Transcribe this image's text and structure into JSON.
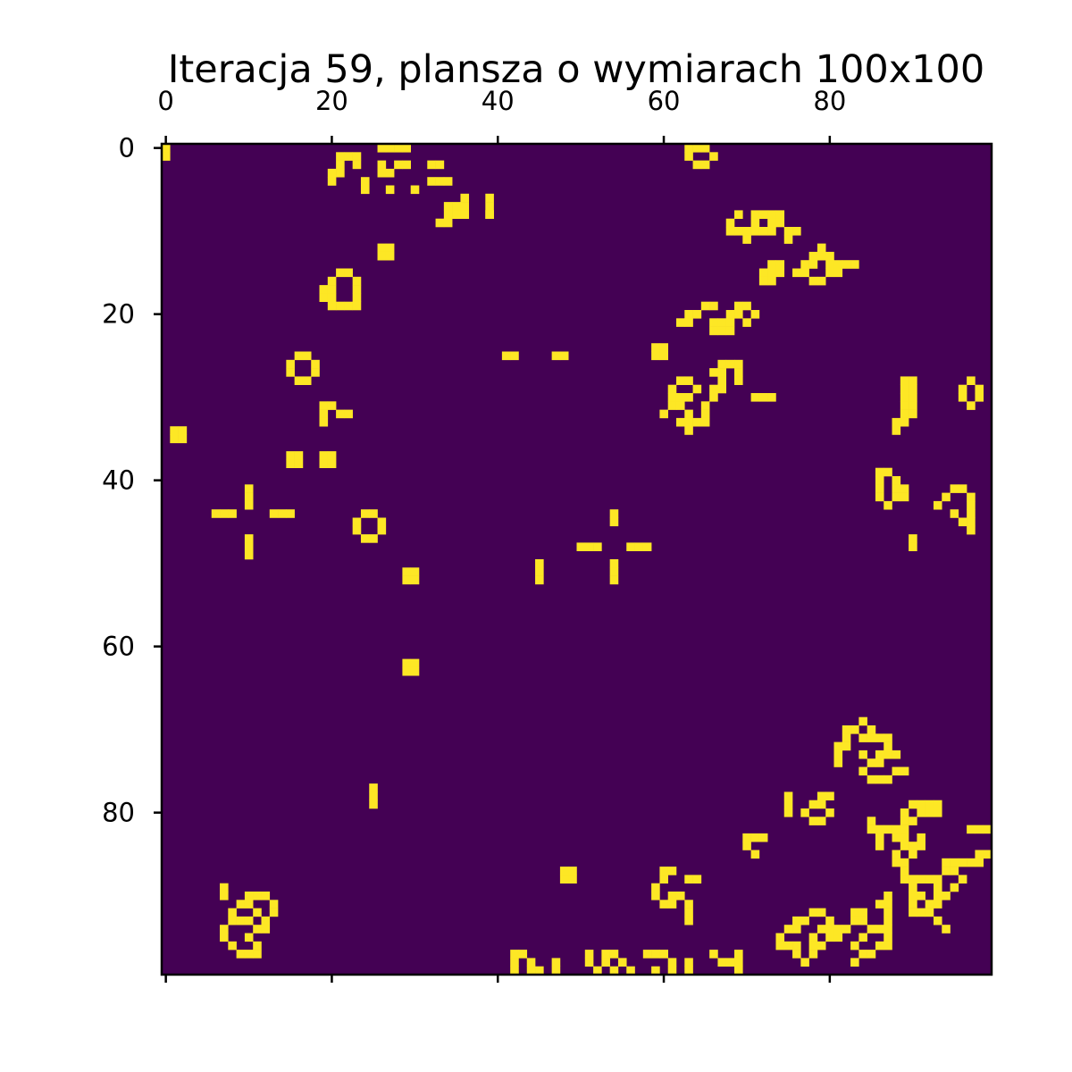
{
  "chart_data": {
    "type": "heatmap",
    "title": "Iteracja 59, plansza o wymiarach 100x100",
    "xlabel": "",
    "ylabel": "",
    "grid_size": [
      100,
      100
    ],
    "x_ticks": [
      0,
      20,
      40,
      60,
      80
    ],
    "y_ticks": [
      0,
      20,
      40,
      60,
      80
    ],
    "x_tick_labels": [
      "0",
      "20",
      "40",
      "60",
      "80"
    ],
    "y_tick_labels": [
      "0",
      "20",
      "40",
      "60",
      "80"
    ],
    "x_tick_position": "top",
    "grid": false,
    "colors": {
      "dead": "#440154",
      "alive": "#fde725"
    },
    "alive_cells_note": "rows listed as [row, [cols]]",
    "alive_cells": [
      [
        0,
        [
          0,
          26,
          27,
          28,
          29,
          63,
          64,
          65
        ]
      ],
      [
        1,
        [
          0,
          21,
          22,
          23,
          63,
          66
        ]
      ],
      [
        2,
        [
          21,
          23,
          26,
          28,
          29,
          32,
          33,
          64,
          65
        ]
      ],
      [
        3,
        [
          20,
          21,
          26,
          27
        ]
      ],
      [
        4,
        [
          20,
          24,
          32,
          33,
          34
        ]
      ],
      [
        5,
        [
          24,
          27,
          30
        ]
      ],
      [
        6,
        [
          36,
          39
        ]
      ],
      [
        7,
        [
          34,
          35,
          36,
          39
        ]
      ],
      [
        8,
        [
          34,
          35,
          36,
          39,
          39,
          71,
          72,
          73
        ]
      ],
      [
        8,
        [
          69,
          74
        ]
      ],
      [
        9,
        [
          33,
          34,
          68,
          71,
          73,
          74
        ]
      ],
      [
        10,
        [
          68,
          69,
          70,
          71,
          72,
          73,
          75,
          76
        ]
      ],
      [
        11,
        [
          70,
          75
        ]
      ],
      [
        12,
        [
          26,
          27,
          79
        ]
      ],
      [
        13,
        [
          26,
          27,
          78,
          79,
          80
        ]
      ],
      [
        14,
        [
          73,
          74,
          77,
          78,
          80,
          81,
          82,
          83
        ]
      ],
      [
        15,
        [
          21,
          22,
          72,
          73,
          74,
          76,
          77,
          80,
          81
        ]
      ],
      [
        16,
        [
          20,
          23,
          72,
          73,
          78,
          79
        ]
      ],
      [
        17,
        [
          19,
          20,
          23
        ]
      ],
      [
        18,
        [
          19,
          20,
          23
        ]
      ],
      [
        19,
        [
          20,
          21,
          22,
          23,
          65,
          66,
          69,
          70
        ]
      ],
      [
        20,
        [
          63,
          64,
          68,
          69,
          71
        ]
      ],
      [
        21,
        [
          62,
          63,
          66,
          67,
          68,
          70
        ]
      ],
      [
        22,
        [
          66,
          67,
          68
        ]
      ],
      [
        24,
        [
          59,
          60
        ]
      ],
      [
        25,
        [
          41,
          42,
          47,
          48,
          59,
          60,
          16,
          17
        ]
      ],
      [
        26,
        [
          15,
          18,
          67,
          68,
          69
        ]
      ],
      [
        27,
        [
          15,
          18,
          66,
          67,
          69
        ]
      ],
      [
        28,
        [
          16,
          17,
          62,
          63,
          67,
          69,
          89,
          90,
          97
        ]
      ],
      [
        29,
        [
          61,
          64,
          66,
          67,
          89,
          90,
          96,
          98
        ]
      ],
      [
        30,
        [
          61,
          62,
          63,
          66,
          71,
          72,
          73,
          89,
          90,
          96,
          98
        ]
      ],
      [
        31,
        [
          19,
          20,
          61,
          62,
          65,
          89,
          90,
          97
        ]
      ],
      [
        32,
        [
          19,
          21,
          22,
          60,
          63,
          65,
          89,
          90
        ]
      ],
      [
        33,
        [
          19,
          62,
          63,
          64,
          65,
          88,
          89
        ]
      ],
      [
        34,
        [
          1,
          2,
          63,
          88
        ]
      ],
      [
        35,
        [
          1,
          2
        ]
      ],
      [
        37,
        [
          15,
          16,
          19,
          20
        ]
      ],
      [
        38,
        [
          15,
          16,
          19,
          20
        ]
      ],
      [
        39,
        [
          86,
          87
        ]
      ],
      [
        40,
        [
          86,
          88
        ]
      ],
      [
        41,
        [
          10,
          86,
          88,
          89,
          95,
          96
        ]
      ],
      [
        42,
        [
          10,
          86,
          88,
          89,
          94,
          97
        ]
      ],
      [
        43,
        [
          10,
          87,
          93,
          97
        ]
      ],
      [
        44,
        [
          6,
          7,
          8,
          13,
          14,
          15,
          24,
          25,
          54,
          95,
          97
        ]
      ],
      [
        45,
        [
          23,
          26,
          54,
          96,
          97
        ]
      ],
      [
        46,
        [
          23,
          26,
          97
        ]
      ],
      [
        47,
        [
          10,
          24,
          25,
          90
        ]
      ],
      [
        48,
        [
          10,
          50,
          51,
          52,
          56,
          57,
          58,
          90
        ]
      ],
      [
        49,
        [
          10
        ]
      ],
      [
        50,
        [
          45,
          54
        ]
      ],
      [
        51,
        [
          29,
          30,
          45,
          54
        ]
      ],
      [
        52,
        [
          29,
          30,
          45,
          54
        ]
      ],
      [
        62,
        [
          29,
          30
        ]
      ],
      [
        63,
        [
          29,
          30
        ]
      ],
      [
        69,
        [
          84
        ]
      ],
      [
        70,
        [
          82,
          83,
          85
        ]
      ],
      [
        71,
        [
          82,
          84,
          85,
          86,
          87
        ]
      ],
      [
        72,
        [
          81,
          82,
          87
        ]
      ],
      [
        73,
        [
          81,
          84,
          86,
          87,
          88
        ]
      ],
      [
        74,
        [
          81,
          85,
          86
        ]
      ],
      [
        75,
        [
          84,
          88,
          89
        ]
      ],
      [
        76,
        [
          85,
          86,
          87
        ]
      ],
      [
        77,
        [
          25
        ]
      ],
      [
        78,
        [
          25,
          75,
          79,
          80
        ]
      ],
      [
        79,
        [
          25,
          75,
          78,
          79,
          90,
          91,
          92,
          93
        ]
      ],
      [
        80,
        [
          75,
          77,
          80,
          89,
          91,
          92,
          93
        ]
      ],
      [
        81,
        [
          78,
          79,
          85,
          89,
          90
        ]
      ],
      [
        82,
        [
          85,
          86,
          87,
          88,
          89,
          97,
          98,
          99
        ]
      ],
      [
        83,
        [
          70,
          71,
          72,
          86,
          88,
          89,
          91
        ]
      ],
      [
        84,
        [
          70,
          86,
          89,
          90,
          91
        ]
      ],
      [
        85,
        [
          71,
          88,
          90,
          98,
          99
        ]
      ],
      [
        86,
        [
          88,
          89,
          94,
          95,
          96,
          97,
          98
        ]
      ],
      [
        87,
        [
          48,
          49,
          60,
          61,
          89,
          94,
          95
        ]
      ],
      [
        88,
        [
          48,
          49,
          60,
          63,
          64,
          89,
          90,
          91,
          92,
          93,
          96
        ]
      ],
      [
        89,
        [
          7,
          59,
          90,
          93,
          95
        ]
      ],
      [
        90,
        [
          7,
          10,
          11,
          12,
          59,
          61,
          62,
          87,
          90,
          91,
          93,
          94
        ]
      ],
      [
        91,
        [
          9,
          10,
          13,
          60,
          61,
          63,
          86,
          87,
          90,
          92,
          93
        ]
      ],
      [
        92,
        [
          8,
          11,
          13,
          63,
          78,
          79,
          83,
          84,
          87,
          90,
          91,
          92
        ]
      ],
      [
        93,
        [
          8,
          9,
          10,
          12,
          63,
          76,
          77,
          80,
          83,
          84,
          87,
          93
        ]
      ],
      [
        94,
        [
          7,
          11,
          12,
          75,
          76,
          79,
          80,
          81,
          82,
          85,
          86,
          87,
          94
        ]
      ],
      [
        95,
        [
          7,
          10,
          74,
          78,
          80,
          81,
          84,
          87
        ]
      ],
      [
        96,
        [
          8,
          11,
          74,
          75,
          76,
          78,
          79,
          83,
          86,
          87
        ]
      ],
      [
        97,
        [
          9,
          10,
          11,
          42,
          43,
          51,
          53,
          54,
          58,
          59,
          60,
          66,
          69,
          76,
          78,
          84,
          85
        ]
      ],
      [
        98,
        [
          42,
          44,
          47,
          51,
          53,
          55,
          61,
          63,
          67,
          68,
          69,
          77,
          83
        ]
      ],
      [
        99,
        [
          42,
          44,
          45,
          47,
          52,
          54,
          56,
          59,
          61,
          63,
          69
        ]
      ]
    ]
  }
}
